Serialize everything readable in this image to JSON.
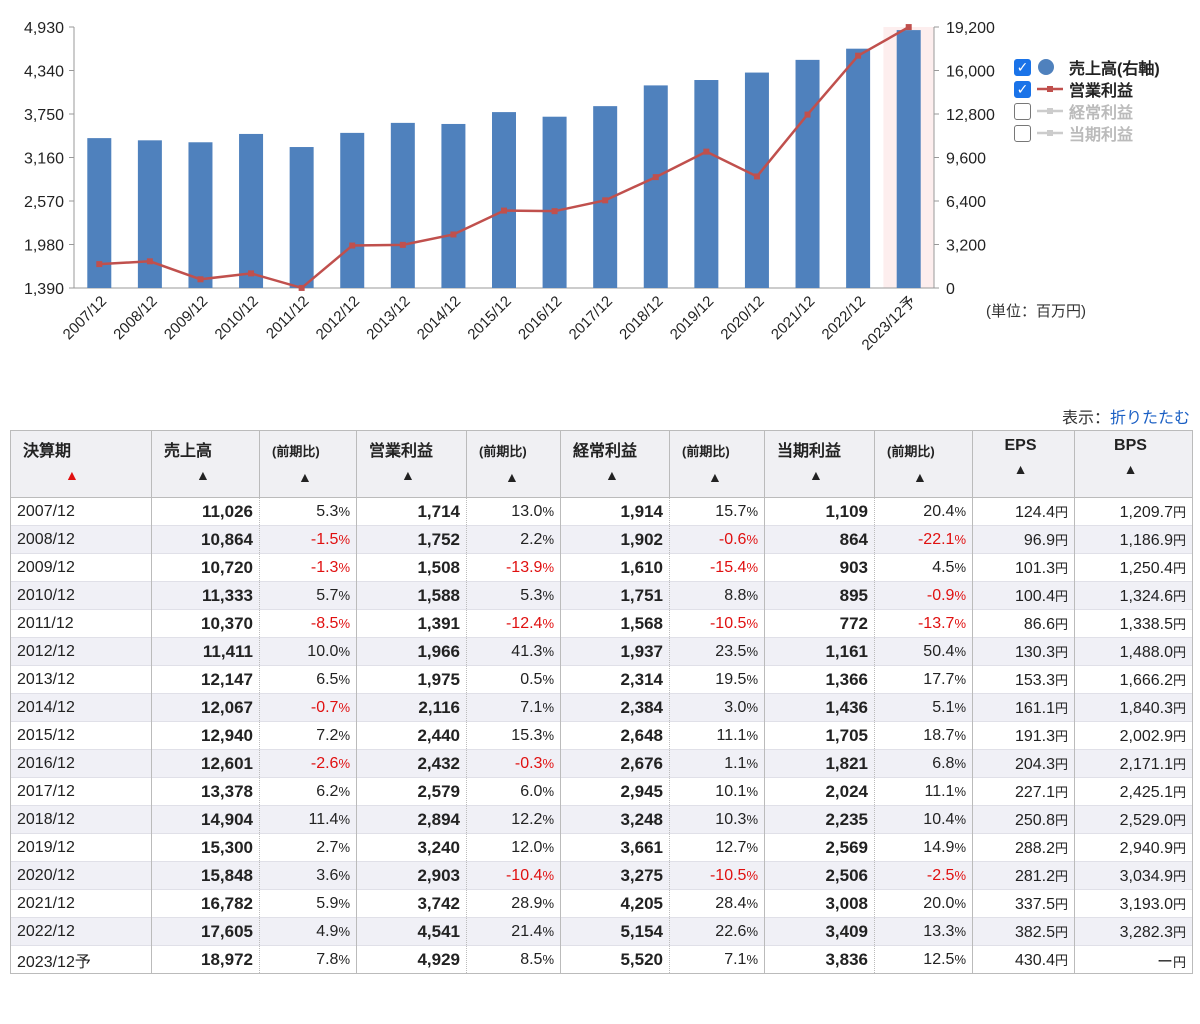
{
  "chart_data": {
    "type": "bar+line",
    "categories": [
      "2007/12",
      "2008/12",
      "2009/12",
      "2010/12",
      "2011/12",
      "2012/12",
      "2013/12",
      "2014/12",
      "2015/12",
      "2016/12",
      "2017/12",
      "2018/12",
      "2019/12",
      "2020/12",
      "2021/12",
      "2022/12",
      "2023/12予"
    ],
    "series": [
      {
        "name": "売上高(右軸)",
        "type": "bar",
        "axis": "right",
        "color": "#4f81bd",
        "values": [
          11026,
          10864,
          10720,
          11333,
          10370,
          11411,
          12147,
          12067,
          12940,
          12601,
          13378,
          14904,
          15300,
          15848,
          16782,
          17605,
          18972
        ]
      },
      {
        "name": "営業利益",
        "type": "line",
        "axis": "left",
        "color": "#c0504d",
        "values": [
          1714,
          1752,
          1508,
          1588,
          1391,
          1966,
          1975,
          2116,
          2440,
          2432,
          2579,
          2894,
          3240,
          2903,
          3742,
          4541,
          4929
        ]
      }
    ],
    "left_ticks": [
      "4,930",
      "4,340",
      "3,750",
      "3,160",
      "2,570",
      "1,980",
      "1,390"
    ],
    "right_ticks": [
      "19,200",
      "16,000",
      "12,800",
      "9,600",
      "6,400",
      "3,200",
      "0"
    ],
    "left_range": [
      1390,
      4930
    ],
    "right_range": [
      0,
      19200
    ],
    "forecast_index": 16
  },
  "legend": [
    {
      "label": "売上高(右軸)",
      "checked": true,
      "mark": "circle",
      "color": "#4f81bd"
    },
    {
      "label": "営業利益",
      "checked": true,
      "mark": "line",
      "color": "#c0504d"
    },
    {
      "label": "経常利益",
      "checked": false,
      "mark": "line",
      "color": "#cccccc"
    },
    {
      "label": "当期利益",
      "checked": false,
      "mark": "line",
      "color": "#cccccc"
    }
  ],
  "unit_note": "(単位：百万円)",
  "display": {
    "label": "表示：",
    "toggle": "折りたたむ"
  },
  "table": {
    "headers": [
      "決算期",
      "売上高",
      "(前期比)",
      "営業利益",
      "(前期比)",
      "経常利益",
      "(前期比)",
      "当期利益",
      "(前期比)",
      "EPS",
      "BPS"
    ],
    "sort_arrow": "▲",
    "pct_unit": "%",
    "yen_unit": "円",
    "rows": [
      {
        "period": "2007/12",
        "sales": "11,026",
        "sales_pct": "5.3",
        "op": "1,714",
        "op_pct": "13.0",
        "ord": "1,914",
        "ord_pct": "15.7",
        "net": "1,109",
        "net_pct": "20.4",
        "eps": "124.4",
        "bps": "1,209.7"
      },
      {
        "period": "2008/12",
        "sales": "10,864",
        "sales_pct": "-1.5",
        "op": "1,752",
        "op_pct": "2.2",
        "ord": "1,902",
        "ord_pct": "-0.6",
        "net": "864",
        "net_pct": "-22.1",
        "eps": "96.9",
        "bps": "1,186.9"
      },
      {
        "period": "2009/12",
        "sales": "10,720",
        "sales_pct": "-1.3",
        "op": "1,508",
        "op_pct": "-13.9",
        "ord": "1,610",
        "ord_pct": "-15.4",
        "net": "903",
        "net_pct": "4.5",
        "eps": "101.3",
        "bps": "1,250.4"
      },
      {
        "period": "2010/12",
        "sales": "11,333",
        "sales_pct": "5.7",
        "op": "1,588",
        "op_pct": "5.3",
        "ord": "1,751",
        "ord_pct": "8.8",
        "net": "895",
        "net_pct": "-0.9",
        "eps": "100.4",
        "bps": "1,324.6"
      },
      {
        "period": "2011/12",
        "sales": "10,370",
        "sales_pct": "-8.5",
        "op": "1,391",
        "op_pct": "-12.4",
        "ord": "1,568",
        "ord_pct": "-10.5",
        "net": "772",
        "net_pct": "-13.7",
        "eps": "86.6",
        "bps": "1,338.5"
      },
      {
        "period": "2012/12",
        "sales": "11,411",
        "sales_pct": "10.0",
        "op": "1,966",
        "op_pct": "41.3",
        "ord": "1,937",
        "ord_pct": "23.5",
        "net": "1,161",
        "net_pct": "50.4",
        "eps": "130.3",
        "bps": "1,488.0"
      },
      {
        "period": "2013/12",
        "sales": "12,147",
        "sales_pct": "6.5",
        "op": "1,975",
        "op_pct": "0.5",
        "ord": "2,314",
        "ord_pct": "19.5",
        "net": "1,366",
        "net_pct": "17.7",
        "eps": "153.3",
        "bps": "1,666.2"
      },
      {
        "period": "2014/12",
        "sales": "12,067",
        "sales_pct": "-0.7",
        "op": "2,116",
        "op_pct": "7.1",
        "ord": "2,384",
        "ord_pct": "3.0",
        "net": "1,436",
        "net_pct": "5.1",
        "eps": "161.1",
        "bps": "1,840.3"
      },
      {
        "period": "2015/12",
        "sales": "12,940",
        "sales_pct": "7.2",
        "op": "2,440",
        "op_pct": "15.3",
        "ord": "2,648",
        "ord_pct": "11.1",
        "net": "1,705",
        "net_pct": "18.7",
        "eps": "191.3",
        "bps": "2,002.9"
      },
      {
        "period": "2016/12",
        "sales": "12,601",
        "sales_pct": "-2.6",
        "op": "2,432",
        "op_pct": "-0.3",
        "ord": "2,676",
        "ord_pct": "1.1",
        "net": "1,821",
        "net_pct": "6.8",
        "eps": "204.3",
        "bps": "2,171.1"
      },
      {
        "period": "2017/12",
        "sales": "13,378",
        "sales_pct": "6.2",
        "op": "2,579",
        "op_pct": "6.0",
        "ord": "2,945",
        "ord_pct": "10.1",
        "net": "2,024",
        "net_pct": "11.1",
        "eps": "227.1",
        "bps": "2,425.1"
      },
      {
        "period": "2018/12",
        "sales": "14,904",
        "sales_pct": "11.4",
        "op": "2,894",
        "op_pct": "12.2",
        "ord": "3,248",
        "ord_pct": "10.3",
        "net": "2,235",
        "net_pct": "10.4",
        "eps": "250.8",
        "bps": "2,529.0"
      },
      {
        "period": "2019/12",
        "sales": "15,300",
        "sales_pct": "2.7",
        "op": "3,240",
        "op_pct": "12.0",
        "ord": "3,661",
        "ord_pct": "12.7",
        "net": "2,569",
        "net_pct": "14.9",
        "eps": "288.2",
        "bps": "2,940.9"
      },
      {
        "period": "2020/12",
        "sales": "15,848",
        "sales_pct": "3.6",
        "op": "2,903",
        "op_pct": "-10.4",
        "ord": "3,275",
        "ord_pct": "-10.5",
        "net": "2,506",
        "net_pct": "-2.5",
        "eps": "281.2",
        "bps": "3,034.9"
      },
      {
        "period": "2021/12",
        "sales": "16,782",
        "sales_pct": "5.9",
        "op": "3,742",
        "op_pct": "28.9",
        "ord": "4,205",
        "ord_pct": "28.4",
        "net": "3,008",
        "net_pct": "20.0",
        "eps": "337.5",
        "bps": "3,193.0"
      },
      {
        "period": "2022/12",
        "sales": "17,605",
        "sales_pct": "4.9",
        "op": "4,541",
        "op_pct": "21.4",
        "ord": "5,154",
        "ord_pct": "22.6",
        "net": "3,409",
        "net_pct": "13.3",
        "eps": "382.5",
        "bps": "3,282.3"
      },
      {
        "period": "2023/12予",
        "sales": "18,972",
        "sales_pct": "7.8",
        "op": "4,929",
        "op_pct": "8.5",
        "ord": "5,520",
        "ord_pct": "7.1",
        "net": "3,836",
        "net_pct": "12.5",
        "eps": "430.4",
        "bps": "ー"
      }
    ]
  }
}
